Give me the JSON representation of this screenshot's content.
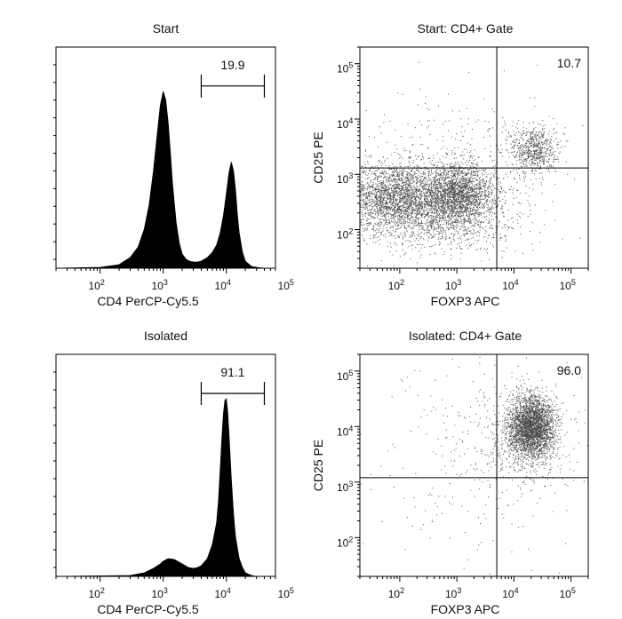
{
  "chart_data": [
    {
      "id": "hist_start",
      "type": "area",
      "title": "Start",
      "xlabel": "CD4 PerCP-Cy5.5",
      "ylabel": "",
      "x_scale": "log",
      "xlim": [
        20,
        60000
      ],
      "ylim": [
        0,
        1.25
      ],
      "x_ticks": [
        {
          "base": "10",
          "exp": "2"
        },
        {
          "base": "10",
          "exp": "3"
        },
        {
          "base": "10",
          "exp": "4"
        },
        {
          "base": "10",
          "exp": "5"
        }
      ],
      "gate": {
        "label": "19.9",
        "from": 4000,
        "to": 40000,
        "level": 1.03
      },
      "series": [
        {
          "x": [
            20,
            100,
            200,
            300,
            400,
            500,
            600,
            700,
            800,
            900,
            1000,
            1100,
            1200,
            1300,
            1400,
            1600,
            1800,
            2000,
            2300,
            2600,
            3000,
            3500,
            4000,
            5000,
            6000,
            7000,
            8000,
            9000,
            10000,
            11000,
            12000,
            13000,
            14000,
            15000,
            16000,
            18000,
            20000,
            25000,
            30000,
            40000,
            60000
          ],
          "y": [
            0,
            0.005,
            0.02,
            0.06,
            0.12,
            0.22,
            0.36,
            0.55,
            0.75,
            0.92,
            1.0,
            0.95,
            0.82,
            0.65,
            0.48,
            0.26,
            0.14,
            0.08,
            0.05,
            0.04,
            0.035,
            0.035,
            0.04,
            0.06,
            0.09,
            0.13,
            0.2,
            0.3,
            0.42,
            0.54,
            0.6,
            0.55,
            0.44,
            0.3,
            0.2,
            0.09,
            0.04,
            0.01,
            0.005,
            0,
            0
          ]
        }
      ]
    },
    {
      "id": "dot_start",
      "type": "scatter",
      "title": "Start: CD4+ Gate",
      "xlabel": "FOXP3 APC",
      "ylabel": "CD25 PE",
      "x_scale": "log",
      "y_scale": "log",
      "xlim": [
        20,
        200000
      ],
      "ylim": [
        20,
        200000
      ],
      "x_ticks": [
        {
          "base": "10",
          "exp": "2"
        },
        {
          "base": "10",
          "exp": "3"
        },
        {
          "base": "10",
          "exp": "4"
        },
        {
          "base": "10",
          "exp": "5"
        }
      ],
      "y_ticks": [
        {
          "base": "10",
          "exp": "2"
        },
        {
          "base": "10",
          "exp": "3"
        },
        {
          "base": "10",
          "exp": "4"
        },
        {
          "base": "10",
          "exp": "5"
        }
      ],
      "quadrant": {
        "x": 5000,
        "y": 1300
      },
      "gate": {
        "label": "10.7",
        "quadrant": "upper-right"
      },
      "populations": [
        {
          "center_x": 80,
          "center_y": 400,
          "spread_x": 0.45,
          "spread_y": 0.3,
          "count": 2300
        },
        {
          "center_x": 1000,
          "center_y": 420,
          "spread_x": 0.32,
          "spread_y": 0.28,
          "count": 2300
        },
        {
          "center_x": 22000,
          "center_y": 2800,
          "spread_x": 0.2,
          "spread_y": 0.22,
          "count": 650
        },
        {
          "center_x": 400,
          "center_y": 150,
          "spread_x": 0.8,
          "spread_y": 0.32,
          "count": 900
        },
        {
          "center_x": 1500,
          "center_y": 2000,
          "spread_x": 1.0,
          "spread_y": 0.6,
          "count": 350
        }
      ]
    },
    {
      "id": "hist_isolated",
      "type": "area",
      "title": "Isolated",
      "xlabel": "CD4 PerCP-Cy5.5",
      "ylabel": "",
      "x_scale": "log",
      "xlim": [
        20,
        60000
      ],
      "ylim": [
        0,
        1.25
      ],
      "x_ticks": [
        {
          "base": "10",
          "exp": "2"
        },
        {
          "base": "10",
          "exp": "3"
        },
        {
          "base": "10",
          "exp": "4"
        },
        {
          "base": "10",
          "exp": "5"
        }
      ],
      "gate": {
        "label": "91.1",
        "from": 4000,
        "to": 40000,
        "level": 1.03
      },
      "series": [
        {
          "x": [
            20,
            300,
            500,
            700,
            900,
            1000,
            1200,
            1500,
            2000,
            2500,
            3000,
            3500,
            4000,
            5000,
            6000,
            7000,
            7500,
            8000,
            8500,
            9000,
            9500,
            10000,
            10500,
            11000,
            12000,
            13000,
            14000,
            16000,
            18000,
            20000,
            25000,
            30000,
            60000
          ],
          "y": [
            0,
            0.005,
            0.02,
            0.045,
            0.07,
            0.085,
            0.1,
            0.095,
            0.07,
            0.05,
            0.045,
            0.05,
            0.06,
            0.1,
            0.18,
            0.3,
            0.42,
            0.6,
            0.78,
            0.92,
            0.99,
            1.0,
            0.93,
            0.8,
            0.55,
            0.35,
            0.22,
            0.1,
            0.05,
            0.02,
            0.005,
            0,
            0
          ]
        }
      ]
    },
    {
      "id": "dot_isolated",
      "type": "scatter",
      "title": "Isolated: CD4+ Gate",
      "xlabel": "FOXP3 APC",
      "ylabel": "CD25 PE",
      "x_scale": "log",
      "y_scale": "log",
      "xlim": [
        20,
        200000
      ],
      "ylim": [
        20,
        200000
      ],
      "x_ticks": [
        {
          "base": "10",
          "exp": "2"
        },
        {
          "base": "10",
          "exp": "3"
        },
        {
          "base": "10",
          "exp": "4"
        },
        {
          "base": "10",
          "exp": "5"
        }
      ],
      "y_ticks": [
        {
          "base": "10",
          "exp": "2"
        },
        {
          "base": "10",
          "exp": "3"
        },
        {
          "base": "10",
          "exp": "4"
        },
        {
          "base": "10",
          "exp": "5"
        }
      ],
      "quadrant": {
        "x": 5000,
        "y": 1200
      },
      "gate": {
        "label": "96.0",
        "quadrant": "upper-right"
      },
      "populations": [
        {
          "center_x": 20000,
          "center_y": 10000,
          "spread_x": 0.2,
          "spread_y": 0.28,
          "count": 3000
        },
        {
          "center_x": 12000,
          "center_y": 6000,
          "spread_x": 0.5,
          "spread_y": 0.5,
          "count": 400
        },
        {
          "center_x": 1500,
          "center_y": 3000,
          "spread_x": 1.0,
          "spread_y": 1.0,
          "count": 250
        }
      ]
    }
  ]
}
